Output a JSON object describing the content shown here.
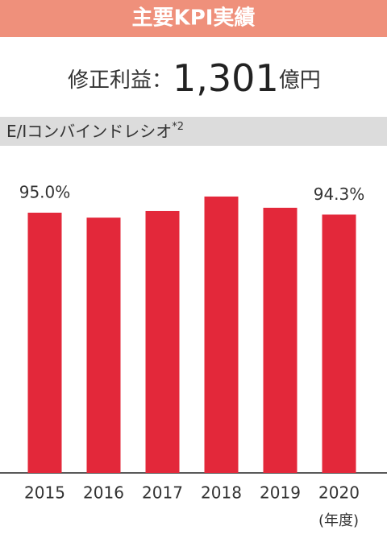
{
  "header_title": "主要KPI実績",
  "kpi": {
    "label": "修正利益：",
    "value": "1,301",
    "unit": "億円"
  },
  "chart_data": {
    "type": "bar",
    "title": "E/Iコンバインドレシオ",
    "title_note": "*2",
    "categories": [
      "2015",
      "2016",
      "2017",
      "2018",
      "2019",
      "2020"
    ],
    "values": [
      95.0,
      93.2,
      95.6,
      100.9,
      96.8,
      94.3
    ],
    "value_labels": [
      "95.0%",
      null,
      null,
      null,
      null,
      "94.3%"
    ],
    "x_unit": "(年度)",
    "color": "#e3283a",
    "ylim": [
      0,
      110
    ]
  }
}
